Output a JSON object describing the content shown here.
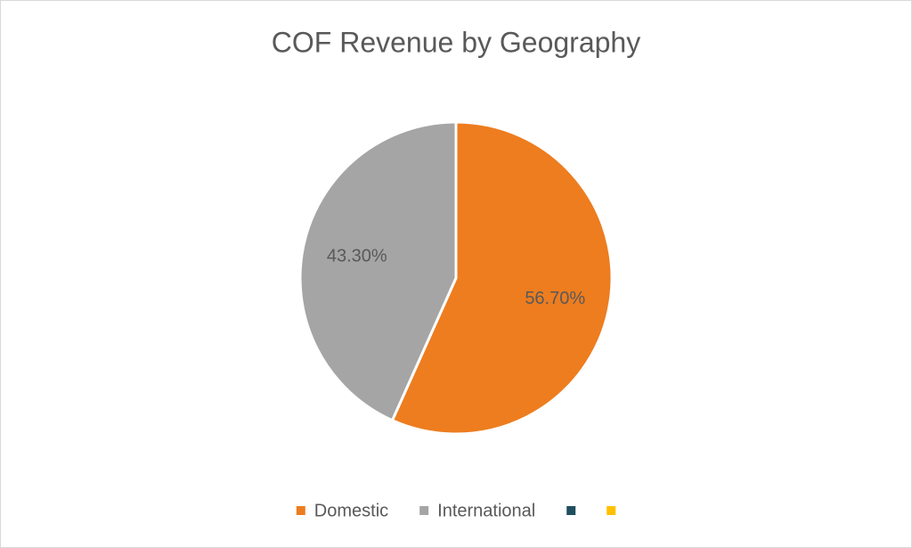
{
  "chart_data": {
    "type": "pie",
    "title": "COF Revenue by Geography",
    "categories": [
      "Domestic",
      "International",
      null,
      null
    ],
    "values": [
      56.7,
      43.3,
      0,
      0
    ],
    "value_labels": [
      "56.70%",
      "43.30%",
      null,
      null
    ],
    "colors": [
      "#ed7d1f",
      "#a5a5a5",
      "#1f4e5f",
      "#ffc000"
    ],
    "legend": "bottom"
  }
}
